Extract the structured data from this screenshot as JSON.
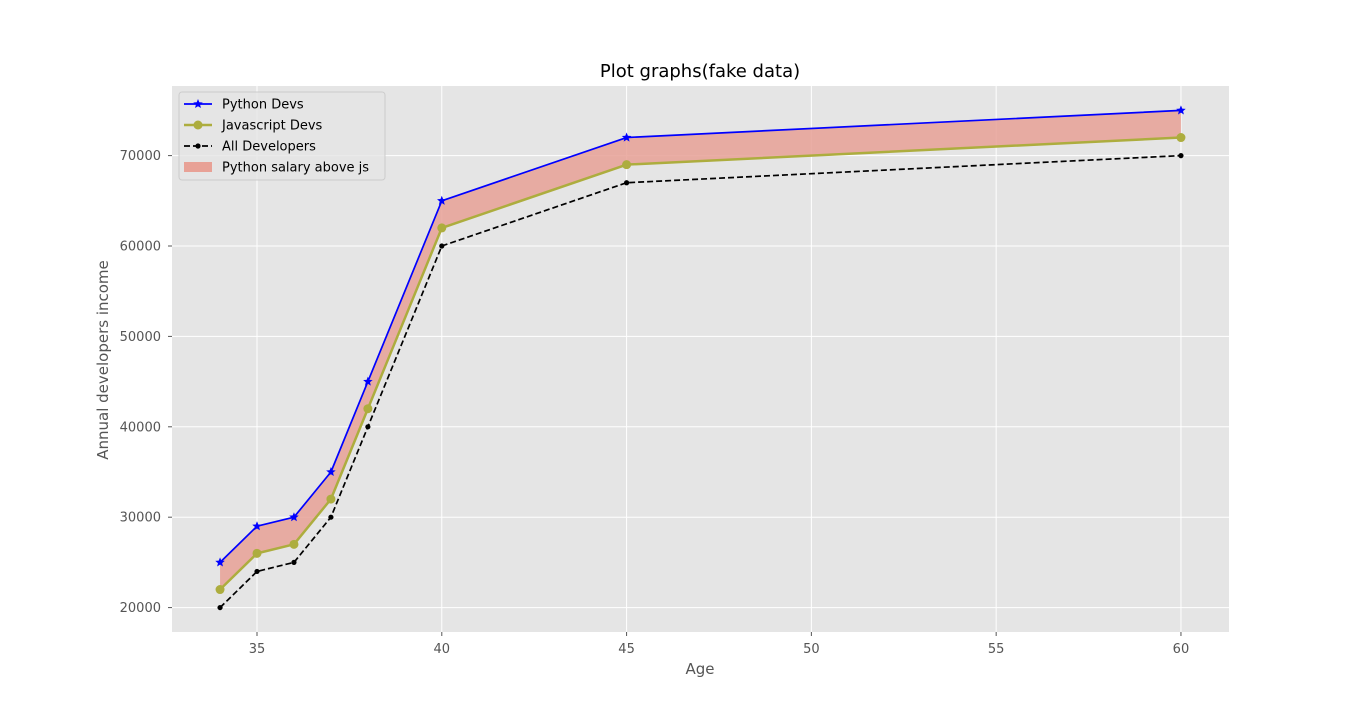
{
  "chart_data": {
    "type": "line",
    "title": "Plot graphs(fake data)",
    "xlabel": "Age",
    "ylabel": "Annual developers income",
    "x": [
      34,
      35,
      36,
      37,
      38,
      40,
      45,
      60
    ],
    "xlim": [
      32.7,
      61.3
    ],
    "ylim": [
      17300,
      77700
    ],
    "xticks": [
      35,
      40,
      45,
      50,
      55,
      60
    ],
    "yticks": [
      20000,
      30000,
      40000,
      50000,
      60000,
      70000
    ],
    "grid": true,
    "legend_position": "top-left",
    "series": [
      {
        "name": "Python Devs",
        "values": [
          25000,
          29000,
          30000,
          35000,
          45000,
          65000,
          72000,
          75000
        ],
        "color": "#0000ff",
        "marker": "star",
        "linestyle": "solid"
      },
      {
        "name": "Javascript Devs",
        "values": [
          22000,
          26000,
          27000,
          32000,
          42000,
          62000,
          69000,
          72000
        ],
        "color": "#adad3e",
        "marker": "circle",
        "linestyle": "solid"
      },
      {
        "name": "All Developers",
        "values": [
          20000,
          24000,
          25000,
          30000,
          40000,
          60000,
          67000,
          70000
        ],
        "color": "#000000",
        "marker": "dot",
        "linestyle": "dashed"
      }
    ],
    "fill_between": {
      "name": "Python salary above js",
      "upper": "Python Devs",
      "lower": "Javascript Devs",
      "color": "#e8a196"
    },
    "colors": {
      "background": "#e5e5e5",
      "grid": "#ffffff",
      "axis_text": "#555555"
    }
  }
}
